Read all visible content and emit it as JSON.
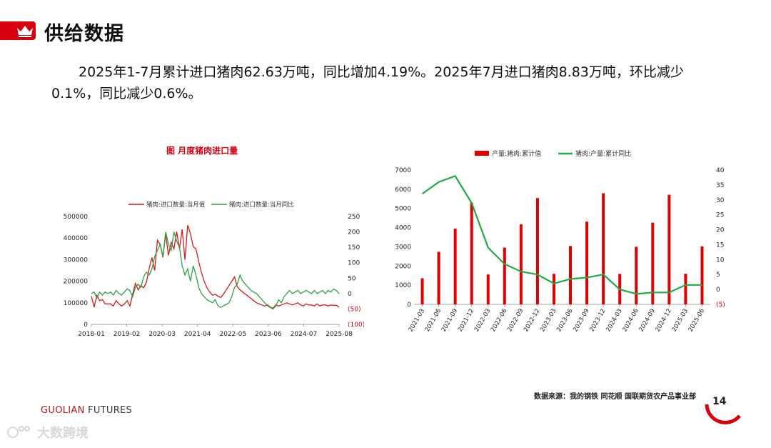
{
  "header": {
    "title": "供给数据"
  },
  "summary": "2025年1-7月累计进口猪肉62.63万吨，同比增加4.19%。2025年7月进口猪肉8.83万吨，环比减少0.1%，同比减少0.6%。",
  "chart_data": [
    {
      "type": "line",
      "title": "图  月度猪肉进口量",
      "x_ticks": [
        "2018-01",
        "2019-02",
        "2020-03",
        "2021-04",
        "2022-05",
        "2023-06",
        "2024-07",
        "2025-08"
      ],
      "y_left_ticks": [
        "0",
        "100000",
        "200000",
        "300000",
        "400000",
        "500000"
      ],
      "y_right_ticks": [
        "250",
        "200",
        "150",
        "100",
        "50",
        "0",
        "(50)",
        "(100)"
      ],
      "ylim_left": [
        0,
        500000
      ],
      "ylim_right": [
        -100,
        250
      ],
      "series": [
        {
          "name": "猪肉:进口数量:当月值",
          "axis": "left",
          "color": "#d7191c",
          "x": [
            0,
            1,
            2,
            3,
            4,
            5,
            6,
            7,
            8,
            9,
            10,
            11,
            12,
            13,
            14,
            15,
            16,
            17,
            18,
            19,
            20,
            21,
            22,
            23,
            24,
            25,
            26,
            27,
            28,
            29,
            30,
            31,
            32,
            33,
            34,
            35,
            36,
            37,
            38,
            39,
            40,
            41,
            42,
            43,
            44,
            45,
            46,
            47,
            48,
            49,
            50,
            51,
            52,
            53,
            54,
            55,
            56,
            57,
            58,
            59,
            60,
            61,
            62,
            63,
            64,
            65,
            66,
            67,
            68,
            69,
            70,
            71,
            72,
            73,
            74,
            75,
            76,
            77,
            78,
            79,
            80,
            81,
            82,
            83,
            84,
            85,
            86,
            87,
            88,
            89,
            90
          ],
          "values": [
            130000,
            80000,
            135000,
            110000,
            115000,
            95000,
            95000,
            95000,
            85000,
            110000,
            95000,
            85000,
            95000,
            110000,
            85000,
            140000,
            190000,
            160000,
            180000,
            170000,
            195000,
            260000,
            310000,
            250000,
            390000,
            370000,
            310000,
            420000,
            320000,
            380000,
            350000,
            430000,
            350000,
            440000,
            300000,
            460000,
            420000,
            360000,
            350000,
            290000,
            240000,
            200000,
            170000,
            150000,
            135000,
            140000,
            130000,
            125000,
            140000,
            160000,
            180000,
            200000,
            220000,
            175000,
            160000,
            150000,
            140000,
            130000,
            120000,
            110000,
            100000,
            95000,
            90000,
            85000,
            90000,
            80000,
            75000,
            90000,
            85000,
            90000,
            95000,
            100000,
            95000,
            90000,
            95000,
            100000,
            90000,
            85000,
            95000,
            90000,
            90000,
            85000,
            95000,
            85000,
            90000,
            90000,
            85000,
            90000,
            88000,
            88300,
            80000
          ]
        },
        {
          "name": "猪肉:进口数量:当月同比",
          "axis": "right",
          "color": "#2ea043",
          "x": [
            0,
            1,
            2,
            3,
            4,
            5,
            6,
            7,
            8,
            9,
            10,
            11,
            12,
            13,
            14,
            15,
            16,
            17,
            18,
            19,
            20,
            21,
            22,
            23,
            24,
            25,
            26,
            27,
            28,
            29,
            30,
            31,
            32,
            33,
            34,
            35,
            36,
            37,
            38,
            39,
            40,
            41,
            42,
            43,
            44,
            45,
            46,
            47,
            48,
            49,
            50,
            51,
            52,
            53,
            54,
            55,
            56,
            57,
            58,
            59,
            60,
            61,
            62,
            63,
            64,
            65,
            66,
            67,
            68,
            69,
            70,
            71,
            72,
            73,
            74,
            75,
            76,
            77,
            78,
            79,
            80,
            81,
            82,
            83,
            84,
            85,
            86,
            87,
            88,
            89,
            90
          ],
          "values": [
            0,
            5,
            -15,
            5,
            -5,
            5,
            0,
            5,
            -5,
            10,
            0,
            -5,
            5,
            15,
            10,
            -10,
            20,
            30,
            20,
            55,
            70,
            60,
            80,
            120,
            140,
            160,
            120,
            200,
            160,
            140,
            200,
            170,
            150,
            90,
            60,
            80,
            40,
            90,
            60,
            20,
            0,
            -10,
            -20,
            -25,
            -30,
            -20,
            -40,
            -45,
            -40,
            -35,
            -30,
            -10,
            20,
            30,
            60,
            40,
            30,
            20,
            10,
            5,
            0,
            -10,
            -20,
            -30,
            -40,
            -45,
            -50,
            -40,
            -20,
            -30,
            -10,
            0,
            10,
            0,
            5,
            10,
            0,
            5,
            10,
            5,
            0,
            10,
            0,
            5,
            10,
            0,
            10,
            5,
            15,
            10,
            0
          ]
        }
      ]
    },
    {
      "type": "bar+line",
      "categories": [
        "2021-03",
        "2021-06",
        "2021-09",
        "2021-12",
        "2022-03",
        "2022-06",
        "2022-09",
        "2022-12",
        "2023-03",
        "2023-06",
        "2023-09",
        "2023-12",
        "2024-03",
        "2024-06",
        "2024-09",
        "2024-12",
        "2025-03",
        "2025-06"
      ],
      "y_left_ticks": [
        "0",
        "1000",
        "2000",
        "3000",
        "4000",
        "5000",
        "6000",
        "7000"
      ],
      "y_right_ticks": [
        "40",
        "35",
        "30",
        "25",
        "20",
        "15",
        "10",
        "5",
        "0",
        "(5)"
      ],
      "ylim_left": [
        0,
        7000
      ],
      "ylim_right": [
        -5,
        40
      ],
      "series": [
        {
          "name": "产量:猪肉:累计值",
          "axis": "left",
          "kind": "bar",
          "color": "#e00000",
          "values": [
            1360,
            2740,
            3950,
            5300,
            1560,
            2960,
            4170,
            5540,
            1590,
            3040,
            4310,
            5790,
            1590,
            3000,
            4260,
            5710,
            1600,
            3020
          ]
        },
        {
          "name": "猪肉:产量:累计同比",
          "axis": "right",
          "kind": "line",
          "color": "#22aa44",
          "values": [
            32,
            36,
            38,
            29,
            14,
            8.5,
            6,
            5,
            2,
            3.5,
            4,
            5,
            0,
            -1.5,
            -1,
            -1,
            1.5,
            1.5
          ]
        }
      ]
    }
  ],
  "footer": {
    "source": "数据来源：我的钢铁  同花顺  国联期货农产品事业部",
    "brand_part1": "GUOLIAN",
    "brand_part2": " FUTURES",
    "page": "14",
    "watermark": "大数跨境"
  }
}
